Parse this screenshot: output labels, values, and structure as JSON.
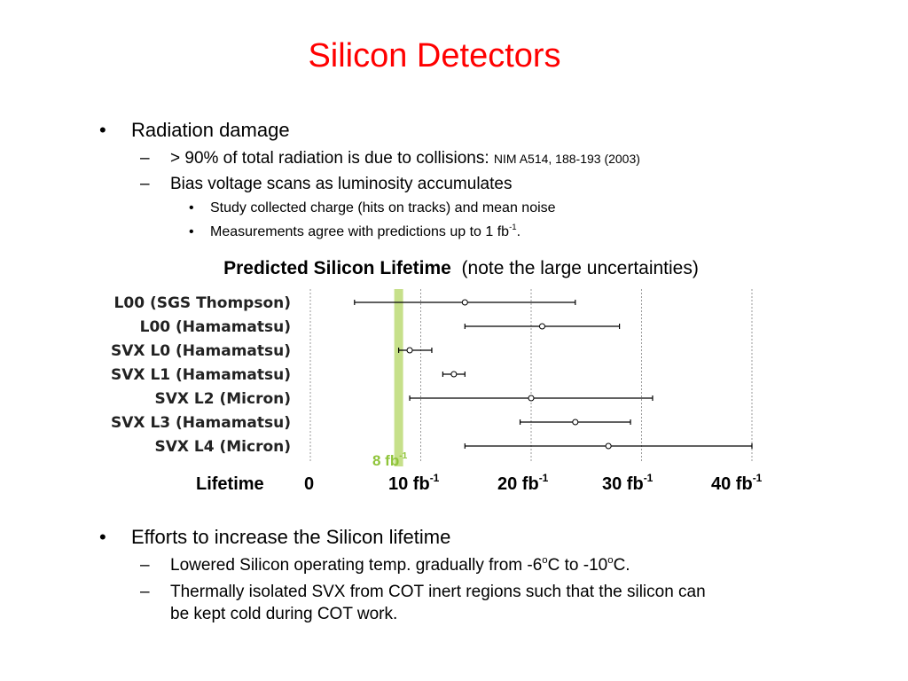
{
  "slide": {
    "title": "Silicon Detectors",
    "bullet1": {
      "text": "Radiation damage",
      "sub1": {
        "text": "> 90% of total radiation is due to collisions:",
        "ref": "NIM A514, 188-193 (2003)"
      },
      "sub2": {
        "text": "Bias voltage scans as luminosity accumulates",
        "items": [
          "Study collected charge (hits on tracks) and mean noise",
          "Measurements agree with predictions up to 1 fb"
        ],
        "item2_sup": "-1",
        "item2_end": "."
      }
    },
    "chart_caption": {
      "bold": "Predicted Silicon Lifetime",
      "note": "(note the large uncertainties)"
    },
    "axis_label_lifetime": "Lifetime",
    "axis_ticks": [
      {
        "text": "0",
        "sup": ""
      },
      {
        "text": "10 fb",
        "sup": "-1"
      },
      {
        "text": "20 fb",
        "sup": "-1"
      },
      {
        "text": "30 fb",
        "sup": "-1"
      },
      {
        "text": "40 fb",
        "sup": "-1"
      }
    ],
    "band": {
      "text": "8 fb",
      "sup": "-1",
      "value": 8,
      "color": "#c6e08a",
      "label_color": "#8fc43a"
    },
    "bullet2": {
      "text": "Efforts to increase the Silicon lifetime",
      "sub1": {
        "a": "Lowered Silicon operating temp. gradually from -6",
        "b": "C to -10",
        "c": "C.",
        "sup": "o"
      },
      "sub2": {
        "line1": "Thermally isolated SVX from COT inert regions such that the silicon can",
        "line2": "be kept cold during COT work."
      }
    }
  },
  "chart_data": {
    "type": "scatter",
    "title": "Predicted Silicon Lifetime",
    "xlabel": "Lifetime",
    "x_unit": "fb-1",
    "xlim": [
      0,
      40
    ],
    "x_ticks": [
      0,
      10,
      20,
      30,
      40
    ],
    "grid": "vertical dotted",
    "highlight_band": {
      "x": 8,
      "label": "8 fb-1"
    },
    "categories": [
      "L00 (SGS Thompson)",
      "L00 (Hamamatsu)",
      "SVX L0 (Hamamatsu)",
      "SVX L1 (Hamamatsu)",
      "SVX L2 (Micron)",
      "SVX L3 (Hamamatsu)",
      "SVX L4 (Micron)"
    ],
    "values": [
      14,
      21,
      9,
      13,
      20,
      24,
      27
    ],
    "lower": [
      4,
      14,
      8,
      12,
      9,
      19,
      14
    ],
    "upper": [
      24,
      28,
      11,
      14,
      31,
      29,
      40
    ]
  }
}
